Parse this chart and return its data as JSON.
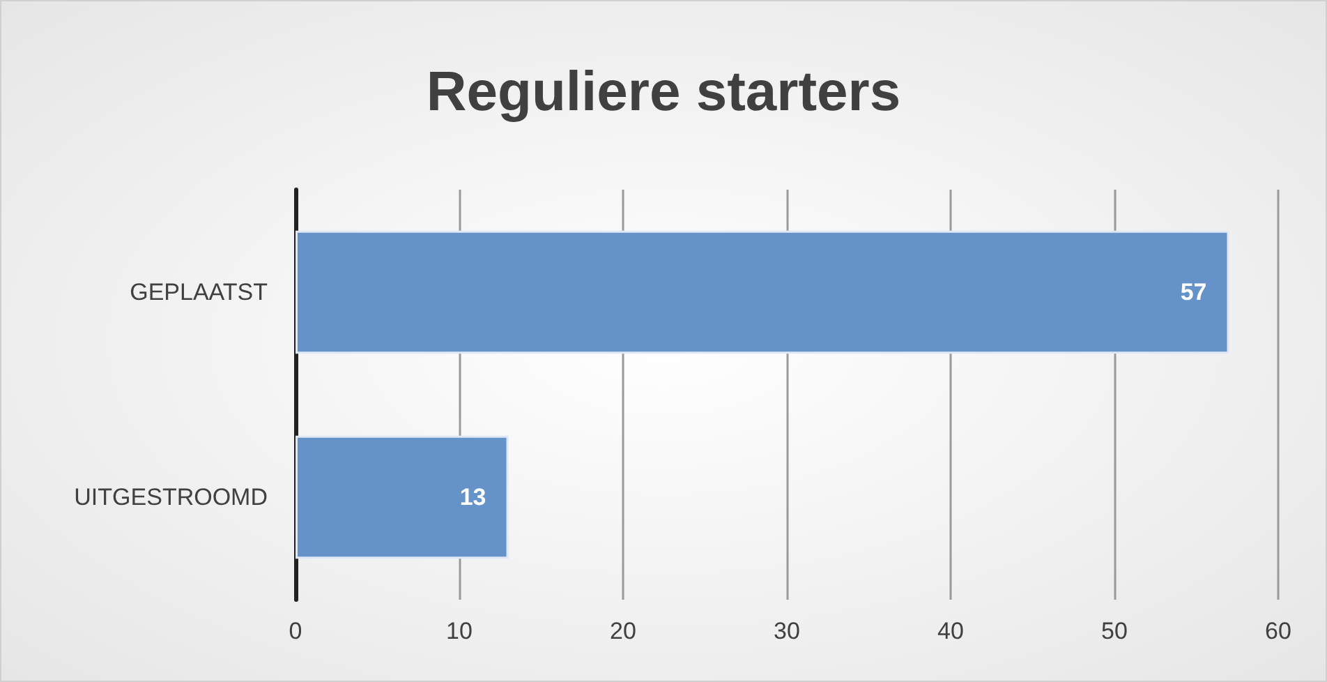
{
  "chart_data": {
    "type": "bar",
    "title": "Reguliere starters",
    "orientation": "horizontal",
    "categories": [
      "GEPLAATST",
      "UITGESTROOMD"
    ],
    "values": [
      57,
      13
    ],
    "color": "#6592c8",
    "xlim": [
      0,
      60
    ],
    "xticks": [
      0,
      10,
      20,
      30,
      40,
      50,
      60
    ],
    "grid": "x",
    "data_labels": true
  }
}
